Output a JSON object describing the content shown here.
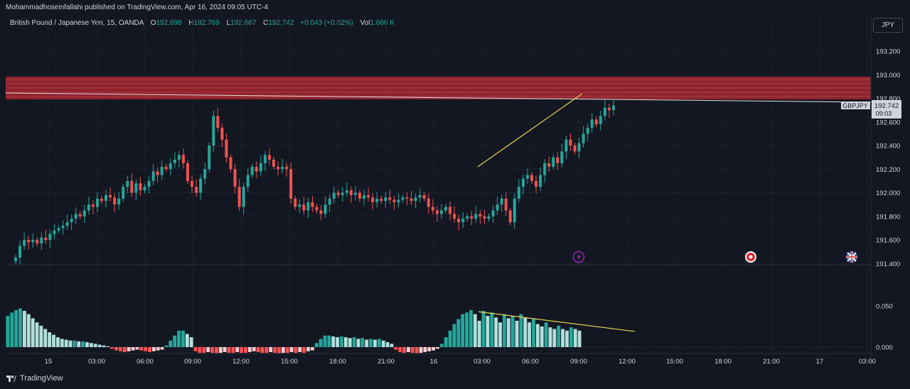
{
  "header": {
    "published_line": "Mohammadhoseinfallahi published on TradingView.com, Apr 16, 2024 09:05 UTC-4"
  },
  "legend": {
    "symbol": "British Pound / Japanese Yen, 15, OANDA",
    "open_label": "O",
    "open_value": "192.698",
    "high_label": "H",
    "high_value": "192.769",
    "low_label": "L",
    "low_value": "192.667",
    "close_label": "C",
    "close_value": "192.742",
    "change": "+0.043 (+0.02%)",
    "vol_label": "Vol",
    "vol_value": "1.666 K"
  },
  "currency_button": "JPY",
  "price_tag": {
    "ticker": "GBPJPY",
    "price": "192.742",
    "countdown": "09:03"
  },
  "footer": {
    "brand": "TradingView"
  },
  "colors": {
    "background": "#131722",
    "up": "#26a69a",
    "down": "#ef5350",
    "zone": "#b22833",
    "trendline": "#e8d44d"
  },
  "icons": [
    "lightning-event-icon",
    "us-flag-event-icon",
    "uk-flag-event-icon"
  ],
  "chart_data": [
    {
      "type": "candlestick",
      "title": "",
      "interval": "15",
      "y_axis": {
        "min": 191.4,
        "max": 193.3,
        "ticks": [
          "193.200",
          "193.000",
          "192.800",
          "192.600",
          "192.400",
          "192.200",
          "192.000",
          "191.800",
          "191.600",
          "191.400"
        ]
      },
      "x_axis": {
        "ticks": [
          "15",
          "03:00",
          "06:00",
          "09:00",
          "12:00",
          "15:00",
          "18:00",
          "21:00",
          "16",
          "03:00",
          "06:00",
          "09:00",
          "12:00",
          "15:00",
          "18:00",
          "21:00",
          "17",
          "03:00"
        ]
      },
      "resistance_zone": {
        "low": 192.79,
        "high": 192.97
      },
      "rising_trendline": {
        "from": 192.22,
        "to": 192.84
      },
      "last_price": 192.742,
      "closes": [
        191.45,
        191.55,
        191.6,
        191.58,
        191.6,
        191.57,
        191.62,
        191.6,
        191.65,
        191.68,
        191.7,
        191.72,
        191.75,
        191.78,
        191.82,
        191.8,
        191.85,
        191.9,
        191.88,
        191.95,
        191.93,
        191.98,
        191.96,
        191.9,
        191.95,
        192.05,
        192.1,
        192.0,
        192.08,
        192.02,
        192.05,
        192.1,
        192.18,
        192.15,
        192.22,
        192.2,
        192.25,
        192.28,
        192.32,
        192.25,
        192.1,
        192.05,
        192.0,
        192.12,
        192.2,
        192.4,
        192.65,
        192.55,
        192.45,
        192.3,
        192.2,
        192.05,
        191.88,
        192.05,
        192.15,
        192.22,
        192.18,
        192.25,
        192.32,
        192.28,
        192.22,
        192.2,
        192.22,
        192.2,
        191.95,
        191.88,
        191.9,
        191.85,
        191.92,
        191.88,
        191.85,
        191.82,
        191.9,
        191.95,
        192.0,
        191.98,
        192.0,
        192.02,
        191.98,
        192.0,
        191.95,
        191.98,
        191.96,
        191.92,
        191.95,
        191.93,
        191.96,
        191.94,
        191.92,
        191.94,
        191.96,
        191.95,
        191.93,
        191.96,
        191.98,
        191.95,
        191.88,
        191.85,
        191.82,
        191.85,
        191.88,
        191.82,
        191.78,
        191.75,
        191.78,
        191.8,
        191.78,
        191.82,
        191.8,
        191.78,
        191.8,
        191.85,
        191.9,
        191.95,
        191.85,
        191.75,
        191.95,
        192.05,
        192.12,
        192.15,
        192.1,
        192.05,
        192.15,
        192.25,
        192.22,
        192.3,
        192.25,
        192.35,
        192.45,
        192.4,
        192.35,
        192.42,
        192.5,
        192.55,
        192.62,
        192.58,
        192.65,
        192.72,
        192.7,
        192.74
      ],
      "support_trendline_note": ""
    },
    {
      "type": "histogram",
      "title": "",
      "y_axis": {
        "ticks": [
          "0.050",
          "0.000"
        ]
      },
      "falling_trendline": {
        "from": 0.043,
        "to": 0.019
      },
      "values": [
        0.038,
        0.042,
        0.045,
        0.047,
        0.044,
        0.04,
        0.035,
        0.03,
        0.026,
        0.022,
        0.018,
        0.015,
        0.012,
        0.01,
        0.009,
        0.008,
        0.008,
        0.007,
        0.007,
        0.006,
        0.005,
        0.004,
        0.003,
        0.002,
        0.001,
        -0.002,
        -0.004,
        -0.005,
        -0.006,
        -0.005,
        -0.004,
        -0.003,
        -0.004,
        -0.005,
        -0.006,
        -0.005,
        -0.004,
        -0.003,
        0.002,
        0.008,
        0.014,
        0.02,
        0.02,
        0.016,
        0.012,
        -0.005,
        -0.007,
        -0.007,
        -0.006,
        -0.007,
        -0.008,
        -0.007,
        -0.006,
        -0.007,
        -0.007,
        -0.006,
        -0.007,
        -0.007,
        -0.006,
        -0.005,
        -0.006,
        -0.007,
        -0.007,
        -0.006,
        -0.007,
        -0.008,
        -0.007,
        -0.007,
        -0.006,
        -0.007,
        -0.006,
        -0.007,
        -0.005,
        -0.004,
        0.005,
        0.01,
        0.014,
        0.014,
        0.013,
        0.012,
        0.013,
        0.012,
        0.011,
        0.012,
        0.01,
        0.011,
        0.009,
        0.01,
        0.009,
        0.01,
        0.008,
        0.006,
        0.004,
        -0.003,
        -0.006,
        -0.007,
        -0.006,
        -0.007,
        -0.008,
        -0.007,
        -0.006,
        -0.005,
        -0.004,
        -0.002,
        0.004,
        0.012,
        0.02,
        0.028,
        0.034,
        0.04,
        0.042,
        0.045,
        0.04,
        0.032,
        0.044,
        0.038,
        0.042,
        0.036,
        0.03,
        0.04,
        0.035,
        0.038,
        0.032,
        0.04,
        0.036,
        0.03,
        0.034,
        0.028,
        0.025,
        0.03,
        0.024,
        0.022,
        0.026,
        0.022,
        0.02,
        0.024,
        0.022,
        0.02
      ]
    }
  ]
}
